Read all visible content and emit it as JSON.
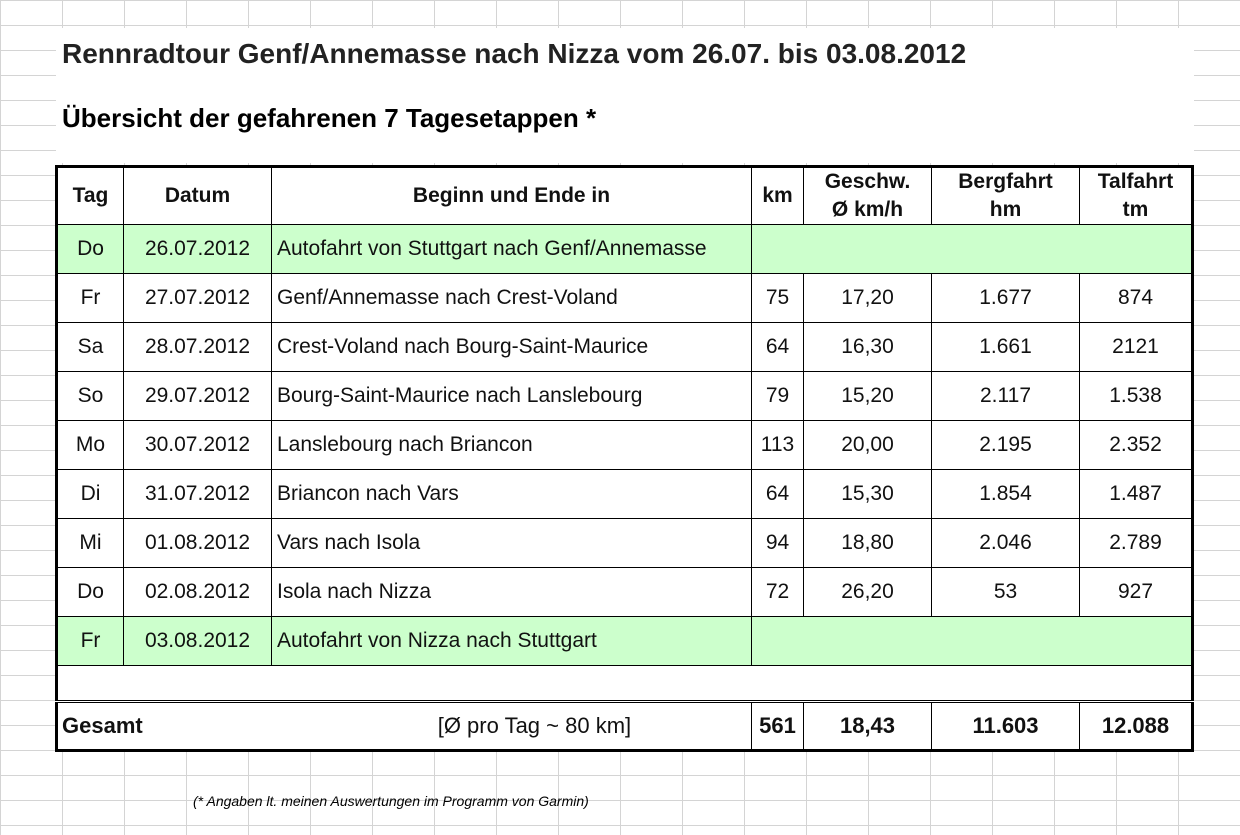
{
  "title": "Rennradtour Genf/Annemasse nach Nizza vom 26.07. bis 03.08.2012",
  "subtitle": "Übersicht der gefahrenen 7 Tagesetappen *",
  "table": {
    "headers": {
      "tag": "Tag",
      "datum": "Datum",
      "route": "Beginn und Ende in",
      "km": "km",
      "speed_1": "Geschw.",
      "speed_2": "Ø km/h",
      "up_1": "Bergfahrt",
      "up_2": "hm",
      "down_1": "Talfahrt",
      "down_2": "tm"
    },
    "rows": [
      {
        "tag": "Do",
        "datum": "26.07.2012",
        "route": "Autofahrt von Stuttgart nach Genf/Annemasse",
        "km": "",
        "speed": "",
        "up": "",
        "down": "",
        "highlight": true
      },
      {
        "tag": "Fr",
        "datum": "27.07.2012",
        "route": "Genf/Annemasse nach Crest-Voland",
        "km": "75",
        "speed": "17,20",
        "up": "1.677",
        "down": "874"
      },
      {
        "tag": "Sa",
        "datum": "28.07.2012",
        "route": "Crest-Voland nach Bourg-Saint-Maurice",
        "km": "64",
        "speed": "16,30",
        "up": "1.661",
        "down": "2121"
      },
      {
        "tag": "So",
        "datum": "29.07.2012",
        "route": "Bourg-Saint-Maurice nach Lanslebourg",
        "km": "79",
        "speed": "15,20",
        "up": "2.117",
        "down": "1.538"
      },
      {
        "tag": "Mo",
        "datum": "30.07.2012",
        "route": "Lanslebourg nach Briancon",
        "km": "113",
        "speed": "20,00",
        "up": "2.195",
        "down": "2.352"
      },
      {
        "tag": "Di",
        "datum": "31.07.2012",
        "route": "Briancon nach Vars",
        "km": "64",
        "speed": "15,30",
        "up": "1.854",
        "down": "1.487"
      },
      {
        "tag": "Mi",
        "datum": "01.08.2012",
        "route": "Vars nach Isola",
        "km": "94",
        "speed": "18,80",
        "up": "2.046",
        "down": "2.789"
      },
      {
        "tag": "Do",
        "datum": "02.08.2012",
        "route": "Isola nach Nizza",
        "km": "72",
        "speed": "26,20",
        "up": "53",
        "down": "927"
      },
      {
        "tag": "Fr",
        "datum": "03.08.2012",
        "route": "Autofahrt von Nizza nach Stuttgart",
        "km": "",
        "speed": "",
        "up": "",
        "down": "",
        "highlight": true
      }
    ],
    "total": {
      "label": "Gesamt",
      "note": "[Ø pro Tag ~ 80 km]",
      "km": "561",
      "speed": "18,43",
      "up": "11.603",
      "down": "12.088"
    }
  },
  "footnote": "(* Angaben lt. meinen Auswertungen im Programm von Garmin)",
  "colors": {
    "highlight_row": "#ccffcc",
    "grid_line": "#d4d4d4"
  }
}
